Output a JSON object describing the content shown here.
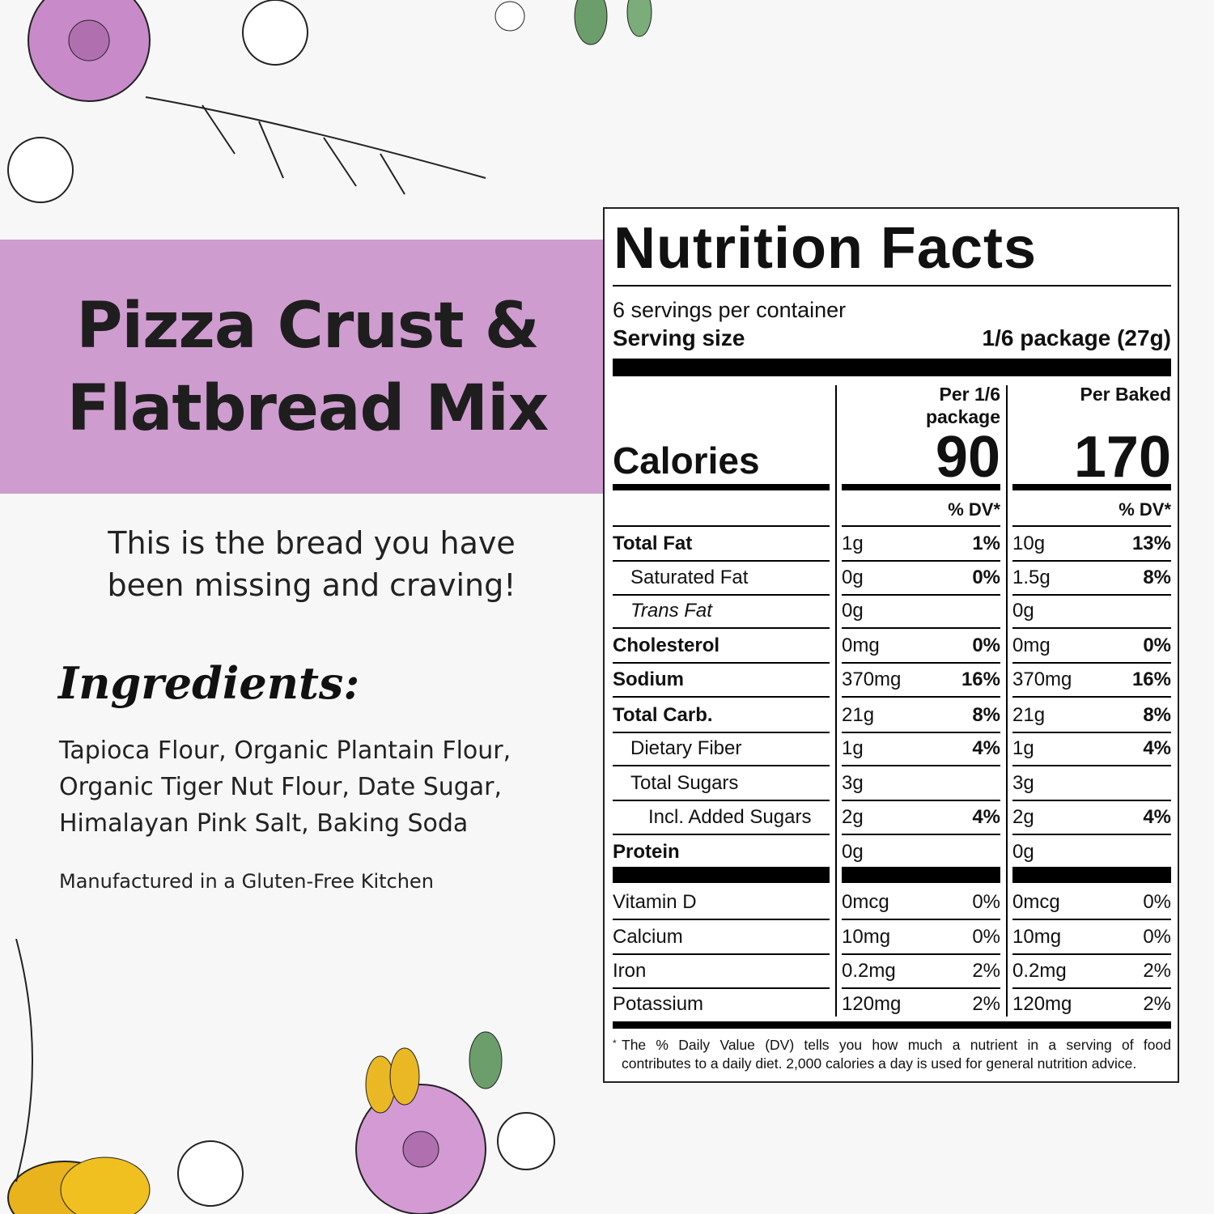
{
  "product": {
    "title_line1": "Pizza Crust &",
    "title_line2": "Flatbread Mix",
    "tagline_line1": "This is the bread you have",
    "tagline_line2": "been missing and craving!",
    "banner_color": "#cf9ccf"
  },
  "ingredients": {
    "heading": "Ingredients:",
    "line1": "Tapioca Flour, Organic Plantain Flour,",
    "line2": "Organic Tiger Nut Flour, Date Sugar,",
    "line3": "Himalayan Pink Salt, Baking Soda",
    "note": "Manufactured in a Gluten-Free Kitchen"
  },
  "nutrition": {
    "title": "Nutrition Facts",
    "servings": "6 servings per container",
    "serving_size_label": "Serving size",
    "serving_size": "1/6 package (27g)",
    "col1_header_line1": "Per 1/6",
    "col1_header_line2": "package",
    "col2_header": "Per Baked",
    "calories_label": "Calories",
    "calories_col1": "90",
    "calories_col2": "170",
    "dv_header": "% DV*",
    "rows": [
      {
        "name": "Total Fat",
        "bold": true,
        "indent": 0,
        "v1": "1g",
        "d1": "1%",
        "v2": "10g",
        "d2": "13%"
      },
      {
        "name": "Saturated Fat",
        "indent": 1,
        "v1": "0g",
        "d1": "0%",
        "v2": "1.5g",
        "d2": "8%"
      },
      {
        "name": "Trans Fat",
        "indent": 1,
        "italic": true,
        "v1": "0g",
        "d1": "",
        "v2": "0g",
        "d2": ""
      },
      {
        "name": "Cholesterol",
        "bold": true,
        "indent": 0,
        "v1": "0mg",
        "d1": "0%",
        "v2": "0mg",
        "d2": "0%"
      },
      {
        "name": "Sodium",
        "bold": true,
        "indent": 0,
        "v1": "370mg",
        "d1": "16%",
        "v2": "370mg",
        "d2": "16%"
      },
      {
        "name": "Total Carb.",
        "bold": true,
        "indent": 0,
        "v1": "21g",
        "d1": "8%",
        "v2": "21g",
        "d2": "8%"
      },
      {
        "name": "Dietary Fiber",
        "indent": 1,
        "v1": "1g",
        "d1": "4%",
        "v2": "1g",
        "d2": "4%"
      },
      {
        "name": "Total Sugars",
        "indent": 1,
        "v1": "3g",
        "d1": "",
        "v2": "3g",
        "d2": ""
      },
      {
        "name": "Incl. Added Sugars",
        "indent": 2,
        "v1": "2g",
        "d1": "4%",
        "v2": "2g",
        "d2": "4%"
      },
      {
        "name": "Protein",
        "bold": true,
        "indent": 0,
        "v1": "0g",
        "d1": "",
        "v2": "0g",
        "d2": ""
      }
    ],
    "vitamins": [
      {
        "name": "Vitamin D",
        "v1": "0mcg",
        "d1": "0%",
        "v2": "0mcg",
        "d2": "0%"
      },
      {
        "name": "Calcium",
        "v1": "10mg",
        "d1": "0%",
        "v2": "10mg",
        "d2": "0%"
      },
      {
        "name": "Iron",
        "v1": "0.2mg",
        "d1": "2%",
        "v2": "0.2mg",
        "d2": "2%"
      },
      {
        "name": "Potassium",
        "v1": "120mg",
        "d1": "2%",
        "v2": "120mg",
        "d2": "2%"
      }
    ],
    "footnote_line1": "The % Daily Value (DV) tells you how much a nutrient in a serving of food",
    "footnote_line2": "contributes to a daily diet. 2,000 calories a day is used for general nutrition advice."
  }
}
